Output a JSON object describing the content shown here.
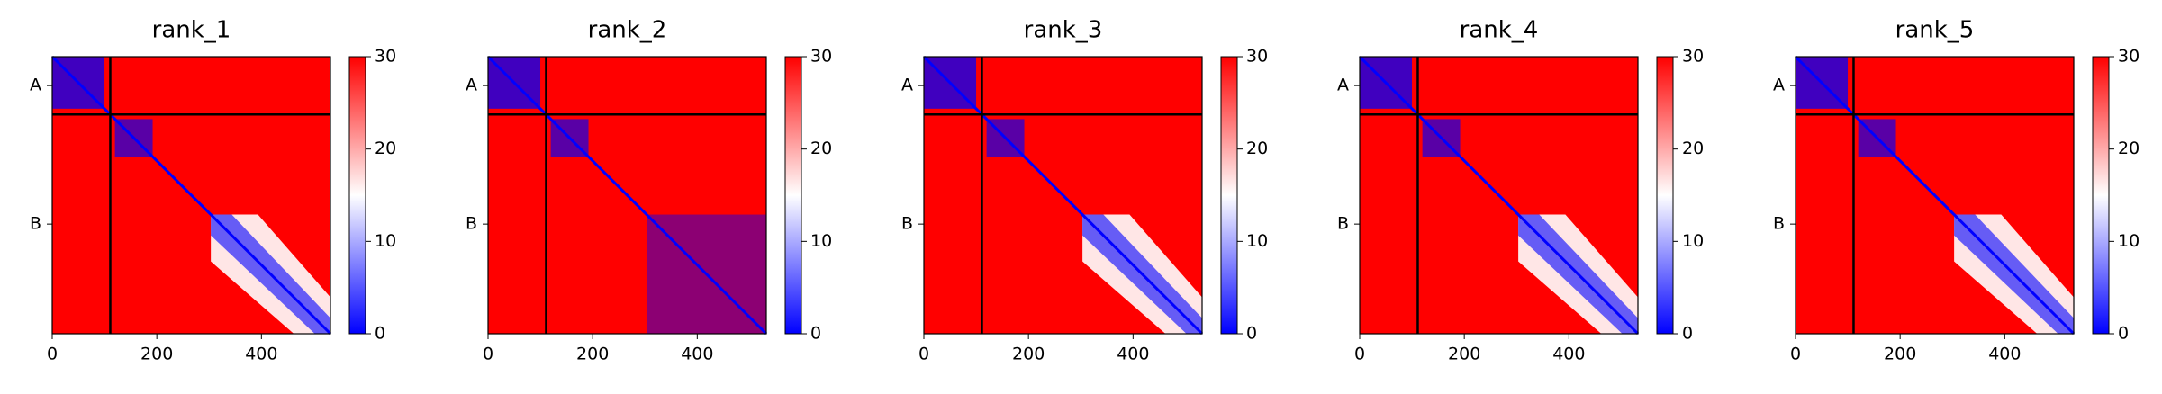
{
  "chart_data": [
    {
      "type": "heatmap",
      "title": "rank_1",
      "xlim": [
        0,
        532
      ],
      "ylim": [
        532,
        0
      ],
      "xticks": [
        0,
        200,
        400
      ],
      "yticks": [
        {
          "value": 55.5,
          "label": "A"
        },
        {
          "value": 321.5,
          "label": "B"
        }
      ],
      "chain_boundary": 111,
      "clim": [
        0,
        30
      ],
      "cticks": [
        0,
        10,
        20,
        30
      ],
      "colors": [
        "#0000ff",
        "#ffffff",
        "#ff0000"
      ]
    },
    {
      "type": "heatmap",
      "title": "rank_2",
      "xlim": [
        0,
        532
      ],
      "ylim": [
        532,
        0
      ],
      "xticks": [
        0,
        200,
        400
      ],
      "yticks": [
        {
          "value": 55.5,
          "label": "A"
        },
        {
          "value": 321.5,
          "label": "B"
        }
      ],
      "chain_boundary": 111,
      "clim": [
        0,
        30
      ],
      "cticks": [
        0,
        10,
        20,
        30
      ],
      "colors": [
        "#0000ff",
        "#ffffff",
        "#ff0000"
      ]
    },
    {
      "type": "heatmap",
      "title": "rank_3",
      "xlim": [
        0,
        532
      ],
      "ylim": [
        532,
        0
      ],
      "xticks": [
        0,
        200,
        400
      ],
      "yticks": [
        {
          "value": 55.5,
          "label": "A"
        },
        {
          "value": 321.5,
          "label": "B"
        }
      ],
      "chain_boundary": 111,
      "clim": [
        0,
        30
      ],
      "cticks": [
        0,
        10,
        20,
        30
      ],
      "colors": [
        "#0000ff",
        "#ffffff",
        "#ff0000"
      ]
    },
    {
      "type": "heatmap",
      "title": "rank_4",
      "xlim": [
        0,
        532
      ],
      "ylim": [
        532,
        0
      ],
      "xticks": [
        0,
        200,
        400
      ],
      "yticks": [
        {
          "value": 55.5,
          "label": "A"
        },
        {
          "value": 321.5,
          "label": "B"
        }
      ],
      "chain_boundary": 111,
      "clim": [
        0,
        30
      ],
      "cticks": [
        0,
        10,
        20,
        30
      ],
      "colors": [
        "#0000ff",
        "#ffffff",
        "#ff0000"
      ]
    },
    {
      "type": "heatmap",
      "title": "rank_5",
      "xlim": [
        0,
        532
      ],
      "ylim": [
        532,
        0
      ],
      "xticks": [
        0,
        200,
        400
      ],
      "yticks": [
        {
          "value": 55.5,
          "label": "A"
        },
        {
          "value": 321.5,
          "label": "B"
        }
      ],
      "chain_boundary": 111,
      "clim": [
        0,
        30
      ],
      "cticks": [
        0,
        10,
        20,
        30
      ],
      "colors": [
        "#0000ff",
        "#ffffff",
        "#ff0000"
      ]
    }
  ]
}
